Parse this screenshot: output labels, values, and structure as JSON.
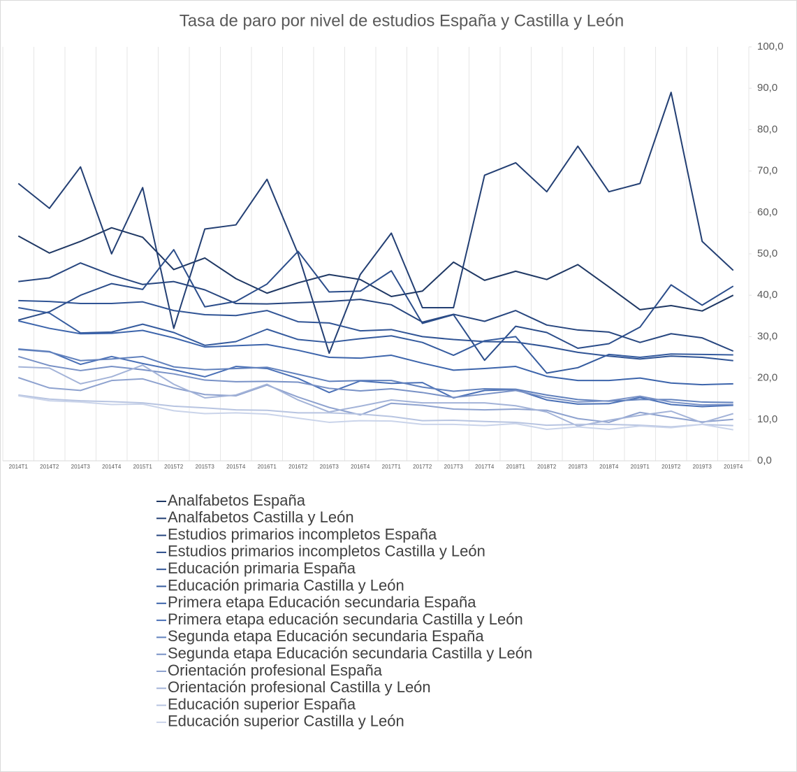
{
  "chart_data": {
    "type": "line",
    "title": "Tasa de paro por nivel de estudios España y Castilla y León",
    "categories": [
      "2014T1",
      "2014T2",
      "2014T3",
      "2014T4",
      "2015T1",
      "2015T2",
      "2015T3",
      "2015T4",
      "2016T1",
      "2016T2",
      "2016T3",
      "2016T4",
      "2017T1",
      "2017T2",
      "2017T3",
      "2017T4",
      "2018T1",
      "2018T2",
      "2018T3",
      "2018T4",
      "2019T1",
      "2019T2",
      "2019T3",
      "2019T4"
    ],
    "ylim": [
      0,
      100
    ],
    "yticks": [
      {
        "value": 0,
        "label": "0,0"
      },
      {
        "value": 10,
        "label": "10,0"
      },
      {
        "value": 20,
        "label": "20,0"
      },
      {
        "value": 30,
        "label": "30,0"
      },
      {
        "value": 40,
        "label": "40,0"
      },
      {
        "value": 50,
        "label": "50,0"
      },
      {
        "value": 60,
        "label": "60,0"
      },
      {
        "value": 70,
        "label": "70,0"
      },
      {
        "value": 80,
        "label": "80,0"
      },
      {
        "value": 90,
        "label": "90,0"
      },
      {
        "value": 100,
        "label": "100,0"
      }
    ],
    "y_axis_side": "right",
    "grid": "vertical",
    "legend": "bottom",
    "series": [
      {
        "name": "Analfabetos España",
        "color": "#1f3864",
        "values": [
          54.3,
          50.2,
          53,
          56.3,
          54,
          46.2,
          49,
          44,
          40.5,
          43,
          45,
          43.8,
          39.7,
          41,
          48,
          43.6,
          45.8,
          43.8,
          47.4,
          42,
          36.5,
          37.5,
          36.2,
          40
        ]
      },
      {
        "name": "Analfabetos Castilla y León",
        "color": "#233f73",
        "values": [
          67,
          61,
          71,
          50,
          66,
          32,
          56,
          57,
          68,
          50,
          26,
          45,
          55,
          37,
          37,
          69,
          72,
          65,
          76,
          65,
          67,
          89,
          53,
          46
        ]
      },
      {
        "name": "Estudios primarios incompletos España",
        "color": "#27467f",
        "values": [
          43.3,
          44.2,
          47.8,
          44.9,
          42.6,
          43.3,
          41.3,
          38,
          37.9,
          38.2,
          38.5,
          39,
          37.7,
          33.5,
          35.4,
          33.7,
          36.3,
          32.8,
          31.6,
          31.1,
          28.6,
          30.7,
          29.7,
          26.5
        ]
      },
      {
        "name": "Estudios primarios incompletos Castilla y León",
        "color": "#2b4d8a",
        "values": [
          34,
          36,
          40,
          42.8,
          41.4,
          51,
          37.2,
          38.5,
          42.7,
          50.6,
          40.8,
          41,
          45.9,
          33.2,
          35.3,
          24.3,
          32.5,
          31,
          27.2,
          28.3,
          32.3,
          42.5,
          37.6,
          42.2
        ]
      },
      {
        "name": "Educación primaria España",
        "color": "#305495",
        "values": [
          38.7,
          38.5,
          38,
          38,
          38.4,
          36.3,
          35.3,
          35.1,
          36.3,
          33.6,
          33.3,
          31.4,
          31.7,
          30,
          29.3,
          28.8,
          28.7,
          27.6,
          26.2,
          25.3,
          24.6,
          25.3,
          25,
          24.2
        ]
      },
      {
        "name": "Educación primaria Castilla y León",
        "color": "#355b9e",
        "values": [
          37,
          35.7,
          30.9,
          31.1,
          33,
          31,
          27.9,
          28.8,
          31.8,
          29.3,
          28.6,
          29.5,
          30.2,
          28.6,
          25.5,
          29,
          30,
          21.2,
          22.5,
          25.7,
          25,
          25.8,
          25.7,
          25.6
        ]
      },
      {
        "name": "Primera etapa Educación secundaria España",
        "color": "#3c64ab",
        "values": [
          33.8,
          32,
          30.7,
          30.8,
          31.5,
          29.7,
          27.5,
          27.8,
          28.1,
          26.7,
          25,
          24.8,
          25.5,
          23.6,
          21.9,
          22.3,
          22.8,
          20.4,
          19.4,
          19.4,
          20,
          18.8,
          18.4,
          18.6
        ]
      },
      {
        "name": "Primera etapa educación secundaria Castilla y León",
        "color": "#4a70b6",
        "values": [
          27,
          26.4,
          23.3,
          25.2,
          23.5,
          22,
          20.3,
          22.8,
          22.3,
          19.9,
          16.5,
          19.3,
          18.7,
          18.9,
          15.2,
          17,
          17.2,
          14.7,
          13.7,
          13.8,
          15.3,
          13.6,
          13.1,
          13.4
        ]
      },
      {
        "name": "Segunda etapa Educación secundaria España",
        "color": "#6181bd",
        "values": [
          26.9,
          26.3,
          24.2,
          24.6,
          25.2,
          22.7,
          22,
          22.3,
          22.6,
          20.9,
          19.2,
          19.4,
          19.4,
          17.8,
          16.8,
          17.4,
          17.3,
          15.9,
          14.8,
          14.4,
          14.8,
          14.8,
          14.2,
          14.1
        ]
      },
      {
        "name": "Segunda etapa Educación secundaria Castilla y León",
        "color": "#7891c6",
        "values": [
          25.2,
          23,
          21.8,
          22.8,
          22,
          21,
          19.5,
          19.1,
          19.2,
          19,
          17.5,
          16.9,
          17.4,
          16.5,
          15.3,
          16.1,
          17,
          15.3,
          14.2,
          14.5,
          15.6,
          14.2,
          13.5,
          13.6
        ]
      },
      {
        "name": "Orientación profesional España",
        "color": "#8ea2cf",
        "values": [
          20.1,
          17.6,
          17,
          19.4,
          19.8,
          17.6,
          16,
          15.7,
          18.3,
          15.4,
          12.9,
          11.1,
          13.9,
          13.4,
          12.5,
          12.3,
          12.5,
          12.2,
          10.2,
          9.3,
          11.7,
          10.5,
          9.4,
          10
        ]
      },
      {
        "name": "Orientación profesional Castilla y León",
        "color": "#a3b3d8",
        "values": [
          22.7,
          22.4,
          18.6,
          20.3,
          23.1,
          18.5,
          15.2,
          15.9,
          18.5,
          14.7,
          11.8,
          13.2,
          14.7,
          14,
          14,
          14,
          13.3,
          11.8,
          8.4,
          9.8,
          11,
          12,
          9.2,
          11.4
        ]
      },
      {
        "name": "Educación superior España",
        "color": "#b7c4e1",
        "values": [
          15.9,
          14.9,
          14.5,
          14.3,
          14,
          13.2,
          12.8,
          12.3,
          12.2,
          11.6,
          11.6,
          11.3,
          10.7,
          9.7,
          9.8,
          9.5,
          9.3,
          8.6,
          8.8,
          8.8,
          8.6,
          8.2,
          8.8,
          8.5
        ]
      },
      {
        "name": "Educación superior Castilla y León",
        "color": "#cad4ea",
        "values": [
          15.7,
          14.5,
          14.2,
          13.6,
          13.7,
          12.1,
          11.4,
          11.6,
          11.3,
          10.3,
          9.3,
          9.7,
          9.6,
          8.8,
          8.8,
          8.5,
          9,
          7.6,
          8.2,
          7.6,
          8.4,
          8,
          8.8,
          7.5
        ]
      }
    ]
  }
}
